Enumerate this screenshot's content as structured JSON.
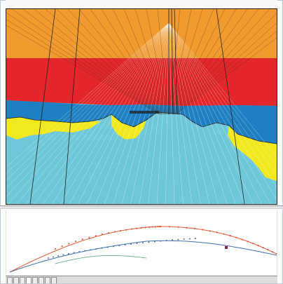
{
  "ruler": {
    "labels": [
      "",
      "",
      "",
      "",
      "",
      "",
      "",
      ""
    ]
  },
  "tabs": [
    {
      "label": "",
      "active": false
    },
    {
      "label": "",
      "active": false
    },
    {
      "label": "",
      "active": false
    },
    {
      "label": "",
      "active": true
    },
    {
      "label": "",
      "active": false
    },
    {
      "label": "",
      "active": false
    },
    {
      "label": "",
      "active": false
    },
    {
      "label": "",
      "active": false
    }
  ],
  "colors": {
    "orange": "#f19a2e",
    "red": "#e2262a",
    "blue": "#1e7fc3",
    "yellow": "#f2e81e",
    "cyan": "#6fc8da",
    "curve_red": "#e25a3c",
    "curve_blue": "#3f6fa8",
    "curve_green": "#4e9a6a"
  }
}
